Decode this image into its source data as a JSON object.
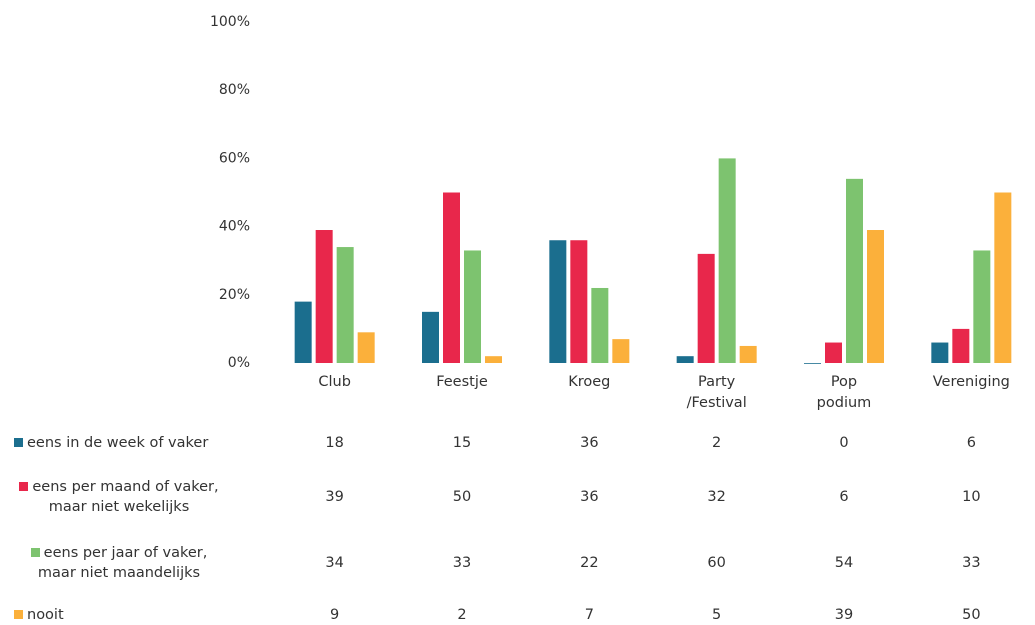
{
  "chart_data": {
    "type": "bar",
    "categories": [
      "Club",
      "Feestje",
      "Kroeg",
      "Party /Festival",
      "Pop podium",
      "Vereniging"
    ],
    "series": [
      {
        "name": "eens in de week of vaker",
        "color": "#1b6e8e",
        "values": [
          18,
          15,
          36,
          2,
          0,
          6
        ]
      },
      {
        "name": "eens per maand of vaker, maar niet wekelijks",
        "color": "#e8274b",
        "values": [
          39,
          50,
          36,
          32,
          6,
          10
        ]
      },
      {
        "name": "eens per jaar of vaker, maar niet maandelijks",
        "color": "#7dc36f",
        "values": [
          34,
          33,
          22,
          60,
          54,
          33
        ]
      },
      {
        "name": "nooit",
        "color": "#fbb03b",
        "values": [
          9,
          2,
          7,
          5,
          39,
          50
        ]
      }
    ],
    "ylim": [
      0,
      100
    ],
    "yticks": [
      {
        "value": 0,
        "label": "0%"
      },
      {
        "value": 20,
        "label": "20%"
      },
      {
        "value": 40,
        "label": "40%"
      },
      {
        "value": 60,
        "label": "60%"
      },
      {
        "value": 80,
        "label": "80%"
      },
      {
        "value": 100,
        "label": "100%"
      }
    ],
    "grid": false
  }
}
